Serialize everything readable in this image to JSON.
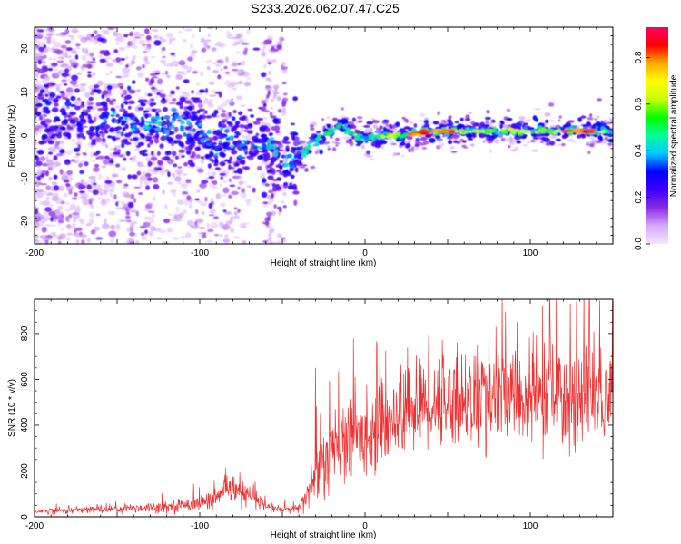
{
  "title": "S233.2026.062.07.47.C25",
  "chart_data": [
    {
      "type": "heatmap",
      "title": "S233.2026.062.07.47.C25",
      "xlabel": "Height of straight line (km)",
      "ylabel": "Frequency (Hz)",
      "xlim": [
        -200,
        150
      ],
      "ylim": [
        -25,
        25
      ],
      "x_ticks": [
        "-200",
        "-100",
        "0",
        "100"
      ],
      "y_ticks": [
        "20",
        "10",
        "0",
        "-10",
        "-20"
      ],
      "colorbar": {
        "label": "Normalized spectral amplitude",
        "range": [
          0.0,
          0.93
        ],
        "ticks": [
          "0.0",
          "0.2",
          "0.4",
          "0.6",
          "0.8"
        ],
        "colormap": [
          "#f3e6ff",
          "#d6a8ff",
          "#8a2be2",
          "#3a00ff",
          "#0000ff",
          "#00c8ff",
          "#00ff9a",
          "#00ff00",
          "#c8ff00",
          "#ffff00",
          "#ffaa00",
          "#ff0000",
          "#ff0066"
        ]
      },
      "ridge": {
        "x": [
          -170,
          -150,
          -130,
          -110,
          -100,
          -90,
          -80,
          -70,
          -60,
          -55,
          -50,
          -45,
          -40,
          -35,
          -30,
          -25,
          -20,
          -15,
          -10,
          -5,
          0,
          10,
          20,
          40,
          60,
          80,
          100,
          120,
          140,
          150
        ],
        "freq": [
          4,
          3,
          3,
          2,
          1,
          -1,
          -2,
          -3,
          -3,
          -4,
          -6,
          -6,
          -5,
          -3,
          -1,
          0,
          1,
          2,
          1,
          0,
          -1,
          0,
          0,
          1,
          1,
          1,
          1,
          1,
          1,
          1
        ]
      }
    },
    {
      "type": "line",
      "title": "",
      "xlabel": "Height of straight line (km)",
      "ylabel": "SNR (10 * v/v)",
      "xlim": [
        -200,
        150
      ],
      "ylim": [
        0,
        950
      ],
      "x_ticks": [
        "-200",
        "-100",
        "0",
        "100"
      ],
      "y_ticks": [
        "0",
        "200",
        "400",
        "600",
        "800"
      ],
      "color": "#ef3030",
      "envelope": {
        "x": [
          -200,
          -180,
          -150,
          -120,
          -100,
          -90,
          -80,
          -70,
          -60,
          -50,
          -40,
          -35,
          -30,
          -25,
          -20,
          -10,
          0,
          10,
          20,
          30,
          50,
          70,
          100,
          120,
          140,
          150
        ],
        "mean": [
          25,
          28,
          35,
          45,
          60,
          85,
          120,
          90,
          45,
          30,
          35,
          100,
          180,
          240,
          280,
          330,
          360,
          400,
          440,
          480,
          510,
          520,
          520,
          530,
          520,
          520
        ],
        "spread": [
          12,
          14,
          18,
          22,
          30,
          40,
          60,
          45,
          25,
          15,
          20,
          80,
          120,
          150,
          170,
          170,
          160,
          170,
          180,
          180,
          190,
          200,
          200,
          220,
          230,
          230
        ]
      },
      "peak_values": [
        {
          "x": 128,
          "y": 940
        },
        {
          "x": 142,
          "y": 945
        },
        {
          "x": 92,
          "y": 850
        },
        {
          "x": -30,
          "y": 650
        }
      ]
    }
  ]
}
